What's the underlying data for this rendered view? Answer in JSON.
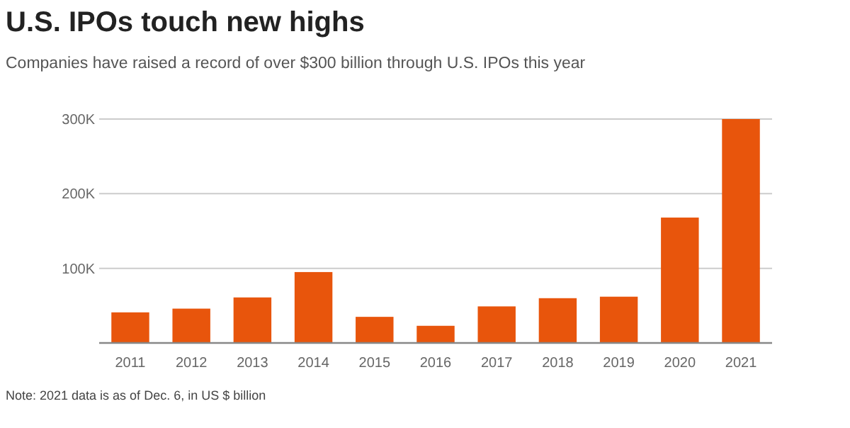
{
  "chart_data": {
    "type": "bar",
    "title": "U.S. IPOs touch new highs",
    "subtitle": "Companies have raised a record of over $300 billion through U.S. IPOs this year",
    "categories": [
      "2011",
      "2012",
      "2013",
      "2014",
      "2015",
      "2016",
      "2017",
      "2018",
      "2019",
      "2020",
      "2021"
    ],
    "values": [
      41,
      46,
      61,
      95,
      35,
      23,
      49,
      60,
      62,
      168,
      300
    ],
    "color": "#e8550c",
    "ylim": [
      0,
      300
    ],
    "yticks": [
      {
        "value": 0,
        "label": null
      },
      {
        "value": 100,
        "label": "100K"
      },
      {
        "value": 200,
        "label": "200K"
      },
      {
        "value": 300,
        "label": "300K"
      }
    ],
    "grid": "y",
    "annotations": [
      "Note: 2021 data is as of Dec. 6, in US $ billion"
    ]
  }
}
